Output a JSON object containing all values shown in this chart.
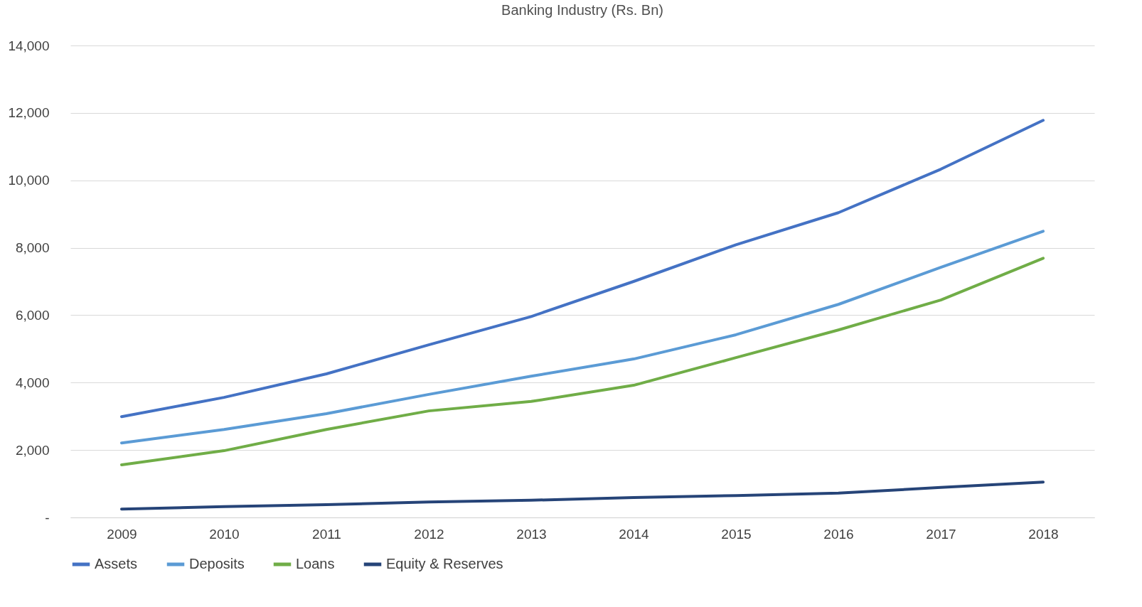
{
  "chart_data": {
    "type": "line",
    "title": "Banking Industry (Rs. Bn)",
    "categories": [
      "2009",
      "2010",
      "2011",
      "2012",
      "2013",
      "2014",
      "2015",
      "2016",
      "2017",
      "2018"
    ],
    "series": [
      {
        "name": "Assets",
        "color": "#4472c4",
        "values": [
          2990,
          3560,
          4260,
          5120,
          5960,
          7000,
          8090,
          9040,
          10330,
          11780
        ]
      },
      {
        "name": "Deposits",
        "color": "#5b9bd5",
        "values": [
          2210,
          2610,
          3080,
          3650,
          4190,
          4700,
          5420,
          6320,
          7420,
          8490
        ]
      },
      {
        "name": "Loans",
        "color": "#70ad47",
        "values": [
          1560,
          1980,
          2610,
          3160,
          3440,
          3920,
          4740,
          5560,
          6450,
          7690
        ]
      },
      {
        "name": "Equity & Reserves",
        "color": "#264478",
        "values": [
          250,
          320,
          380,
          460,
          510,
          590,
          650,
          720,
          890,
          1050
        ]
      }
    ],
    "ylim": [
      0,
      14000
    ],
    "yticks": [
      {
        "value": 0,
        "label": "-"
      },
      {
        "value": 2000,
        "label": "2,000"
      },
      {
        "value": 4000,
        "label": "4,000"
      },
      {
        "value": 6000,
        "label": "6,000"
      },
      {
        "value": 8000,
        "label": "8,000"
      },
      {
        "value": 10000,
        "label": "10,000"
      },
      {
        "value": 12000,
        "label": "12,000"
      },
      {
        "value": 14000,
        "label": "14,000"
      }
    ],
    "grid": "y",
    "legend": "bottom",
    "marker": "none",
    "line_style": "solid"
  }
}
